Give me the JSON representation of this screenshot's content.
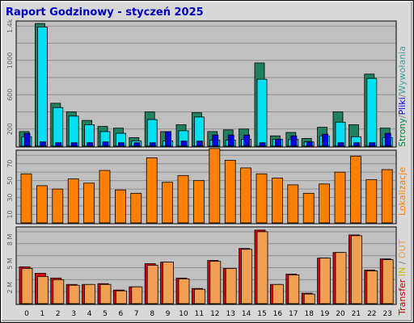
{
  "title": "Raport Godzinowy -   styczeń 2025",
  "hours": [
    "0",
    "1",
    "2",
    "3",
    "4",
    "5",
    "6",
    "7",
    "8",
    "9",
    "10",
    "11",
    "12",
    "13",
    "14",
    "15",
    "16",
    "17",
    "18",
    "19",
    "20",
    "21",
    "22",
    "23"
  ],
  "panels": {
    "pages": {
      "ticks": [
        "200",
        "600",
        "1000",
        "1.4k"
      ],
      "side_label_parts": [
        {
          "text": "Strony",
          "color": "#008040"
        },
        {
          "text": "/",
          "color": "#808080"
        },
        {
          "text": "Pliki",
          "color": "#0000ff"
        },
        {
          "text": "/",
          "color": "#808080"
        },
        {
          "text": "Wywołania",
          "color": "#40a0a0"
        }
      ]
    },
    "visits": {
      "ticks": [
        "10",
        "30",
        "50",
        "70"
      ],
      "side_label": "Lokalizacje"
    },
    "transfer": {
      "ticks": [
        "2 M",
        "5 M",
        "8 M"
      ],
      "side_label_parts": [
        {
          "text": "Transfer",
          "color": "#c00000"
        },
        {
          "text": " ",
          "color": "#808080"
        },
        {
          "text": "IN",
          "color": "#d0c000"
        },
        {
          "text": " / ",
          "color": "#808080"
        },
        {
          "text": "OUT",
          "color": "#e8a040"
        }
      ]
    }
  },
  "colors": {
    "hits": "#208060",
    "files": "#00e0f0",
    "pages": "#0000e0",
    "visits": "#ff8000",
    "transfer_in": "#e00000",
    "transfer_out": "#f0a050",
    "plot_bg": "#c0c0c0",
    "outer_bg": "#d8d8d8"
  },
  "chart_data": [
    {
      "type": "bar",
      "categories": [
        "0",
        "1",
        "2",
        "3",
        "4",
        "5",
        "6",
        "7",
        "8",
        "9",
        "10",
        "11",
        "12",
        "13",
        "14",
        "15",
        "16",
        "17",
        "18",
        "19",
        "20",
        "21",
        "22",
        "23"
      ],
      "ylim": [
        0,
        1450
      ],
      "ylabel": "Strony/Pliki/Wywołania",
      "series": [
        {
          "name": "Wywołania",
          "values": [
            170,
            1430,
            500,
            400,
            300,
            230,
            210,
            100,
            400,
            170,
            250,
            390,
            170,
            190,
            200,
            970,
            120,
            160,
            90,
            220,
            400,
            250,
            840,
            210
          ]
        },
        {
          "name": "Pliki",
          "values": [
            110,
            1390,
            450,
            350,
            250,
            170,
            150,
            60,
            310,
            60,
            180,
            340,
            70,
            70,
            80,
            780,
            80,
            80,
            50,
            120,
            280,
            110,
            790,
            100
          ]
        },
        {
          "name": "Strony",
          "values": [
            150,
            50,
            40,
            40,
            40,
            50,
            40,
            40,
            40,
            170,
            60,
            60,
            130,
            130,
            130,
            40,
            80,
            120,
            50,
            140,
            40,
            40,
            40,
            150
          ]
        }
      ]
    },
    {
      "type": "bar",
      "categories": [
        "0",
        "1",
        "2",
        "3",
        "4",
        "5",
        "6",
        "7",
        "8",
        "9",
        "10",
        "11",
        "12",
        "13",
        "14",
        "15",
        "16",
        "17",
        "18",
        "19",
        "20",
        "21",
        "22",
        "23"
      ],
      "ylim": [
        0,
        85
      ],
      "ylabel": "Lokalizacje",
      "series": [
        {
          "name": "Lokalizacje",
          "values": [
            58,
            44,
            40,
            52,
            47,
            62,
            39,
            35,
            77,
            48,
            56,
            50,
            88,
            74,
            65,
            58,
            53,
            45,
            35,
            46,
            60,
            79,
            51,
            63
          ]
        }
      ]
    },
    {
      "type": "bar",
      "categories": [
        "0",
        "1",
        "2",
        "3",
        "4",
        "5",
        "6",
        "7",
        "8",
        "9",
        "10",
        "11",
        "12",
        "13",
        "14",
        "15",
        "16",
        "17",
        "18",
        "19",
        "20",
        "21",
        "22",
        "23"
      ],
      "ylim": [
        0,
        9.5
      ],
      "ylabel": "Transfer IN / OUT (MB)",
      "series": [
        {
          "name": "IN",
          "values": [
            4.6,
            3.8,
            3.2,
            2.4,
            2.4,
            2.5,
            1.7,
            2.1,
            5.0,
            5.2,
            3.2,
            1.9,
            5.4,
            4.4,
            6.9,
            9.2,
            2.4,
            3.7,
            1.3,
            5.7,
            6.4,
            8.6,
            4.2,
            5.6
          ]
        },
        {
          "name": "OUT",
          "values": [
            4.4,
            3.4,
            3.0,
            2.3,
            2.4,
            2.4,
            1.6,
            2.1,
            4.8,
            5.2,
            3.1,
            1.8,
            5.3,
            4.4,
            6.8,
            9.0,
            2.4,
            3.6,
            1.2,
            5.7,
            6.4,
            8.5,
            4.1,
            5.5
          ]
        }
      ]
    }
  ]
}
